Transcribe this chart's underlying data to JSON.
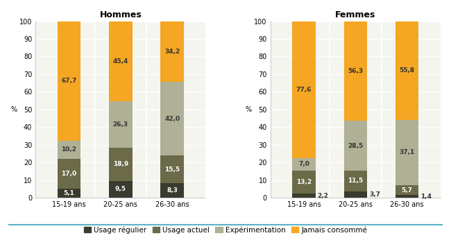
{
  "hommes": {
    "title": "Hommes",
    "categories": [
      "15-19 ans",
      "20-25 ans",
      "26-30 ans"
    ],
    "usage_regulier": [
      5.1,
      9.5,
      8.3
    ],
    "usage_actuel": [
      17.0,
      18.9,
      15.5
    ],
    "experimentation": [
      10.2,
      26.3,
      42.0
    ],
    "jamais_consomme": [
      67.7,
      45.4,
      34.2
    ]
  },
  "femmes": {
    "title": "Femmes",
    "categories": [
      "15-19 ans",
      "20-25 ans",
      "26-30 ans"
    ],
    "usage_regulier": [
      2.2,
      3.7,
      1.4
    ],
    "usage_actuel": [
      13.2,
      11.5,
      5.7
    ],
    "experimentation": [
      7.0,
      28.5,
      37.1
    ],
    "jamais_consomme": [
      77.6,
      56.3,
      55.8
    ]
  },
  "colors": {
    "usage_regulier": "#3a3a2e",
    "usage_actuel": "#6b6b4a",
    "experimentation": "#b0b096",
    "jamais_consomme": "#f5a623"
  },
  "legend_labels": [
    "Usage régulier",
    "Usage actuel",
    "Expérimentation",
    "Jamais consommé"
  ],
  "ylabel": "%",
  "ylim": [
    0,
    100
  ],
  "yticks": [
    0,
    10,
    20,
    30,
    40,
    50,
    60,
    70,
    80,
    90,
    100
  ],
  "background_color": "#ffffff",
  "plot_bg_color": "#f5f5f0",
  "bar_width": 0.45,
  "title_fontsize": 9,
  "label_fontsize": 6.5,
  "tick_fontsize": 7,
  "legend_fontsize": 7.5
}
